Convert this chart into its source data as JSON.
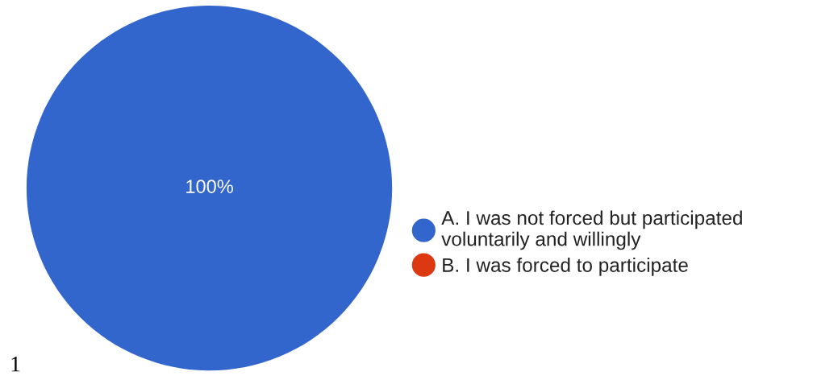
{
  "chart_data": {
    "type": "pie",
    "categories": [
      "A. I was not forced but participated\nvoluntarily and willingly",
      "B. I was forced to participate"
    ],
    "values": [
      100,
      0
    ],
    "colors": [
      "#3366cc",
      "#dc3912"
    ],
    "value_labels": [
      "100%",
      null
    ],
    "legend": "right",
    "annotations": [
      "1"
    ]
  }
}
